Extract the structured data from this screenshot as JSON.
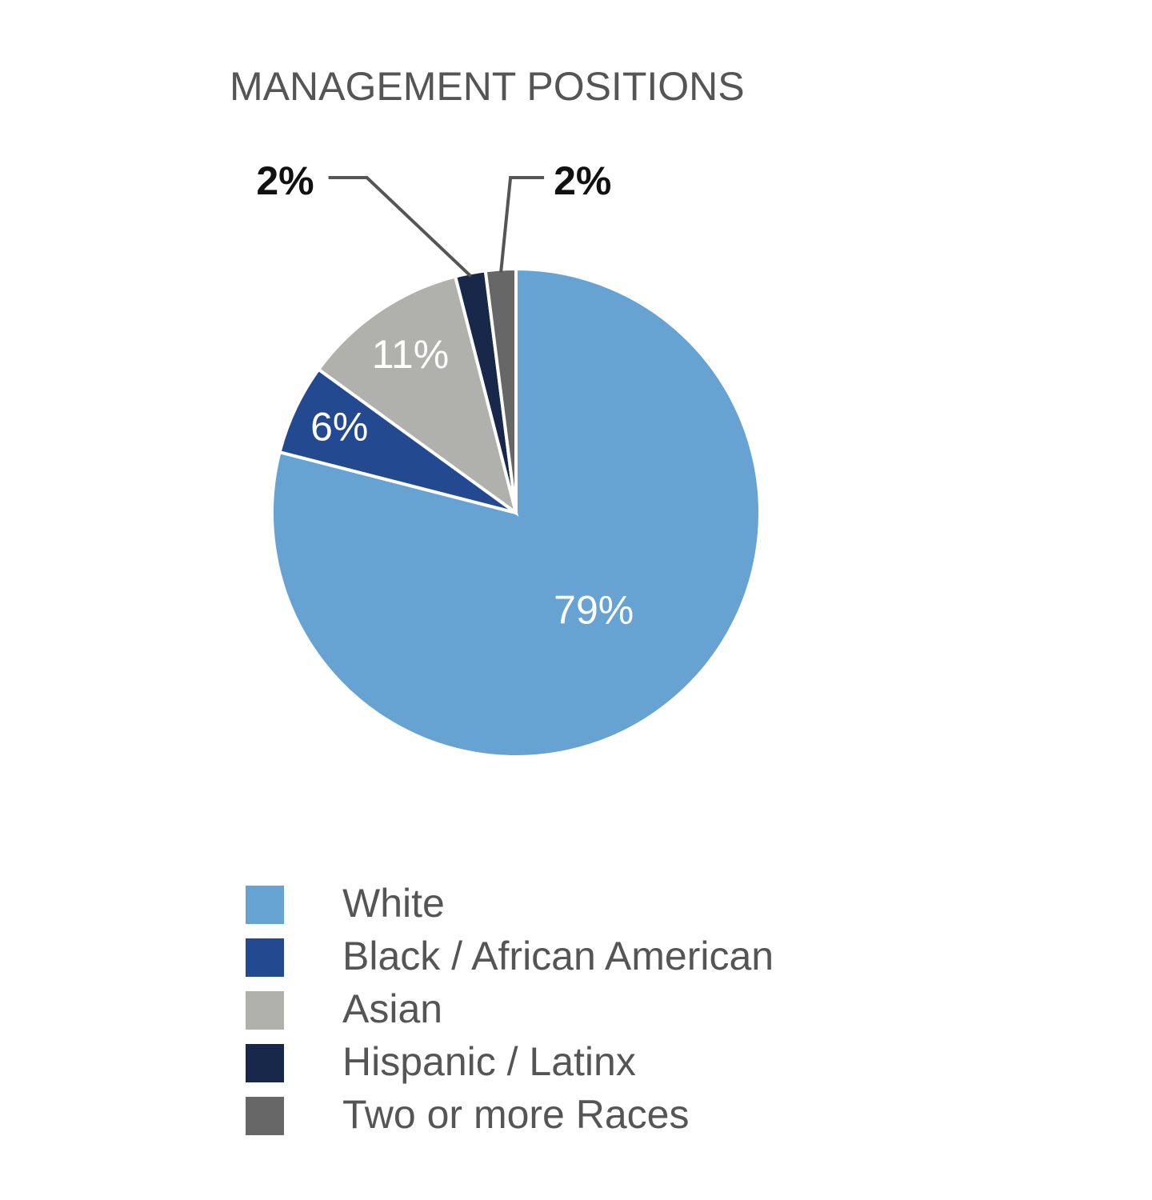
{
  "chart_data": {
    "type": "pie",
    "title": "MANAGEMENT POSITIONS",
    "categories": [
      "White",
      "Black / African American",
      "Asian",
      "Hispanic / Latinx",
      "Two or more Races"
    ],
    "values": [
      79,
      6,
      11,
      2,
      2
    ],
    "value_labels": [
      "79%",
      "6%",
      "11%",
      "2%",
      "2%"
    ],
    "colors": [
      "#66a2d2",
      "#234a91",
      "#b0b0ac",
      "#17284a",
      "#676767"
    ],
    "legend": "bottom-left"
  }
}
